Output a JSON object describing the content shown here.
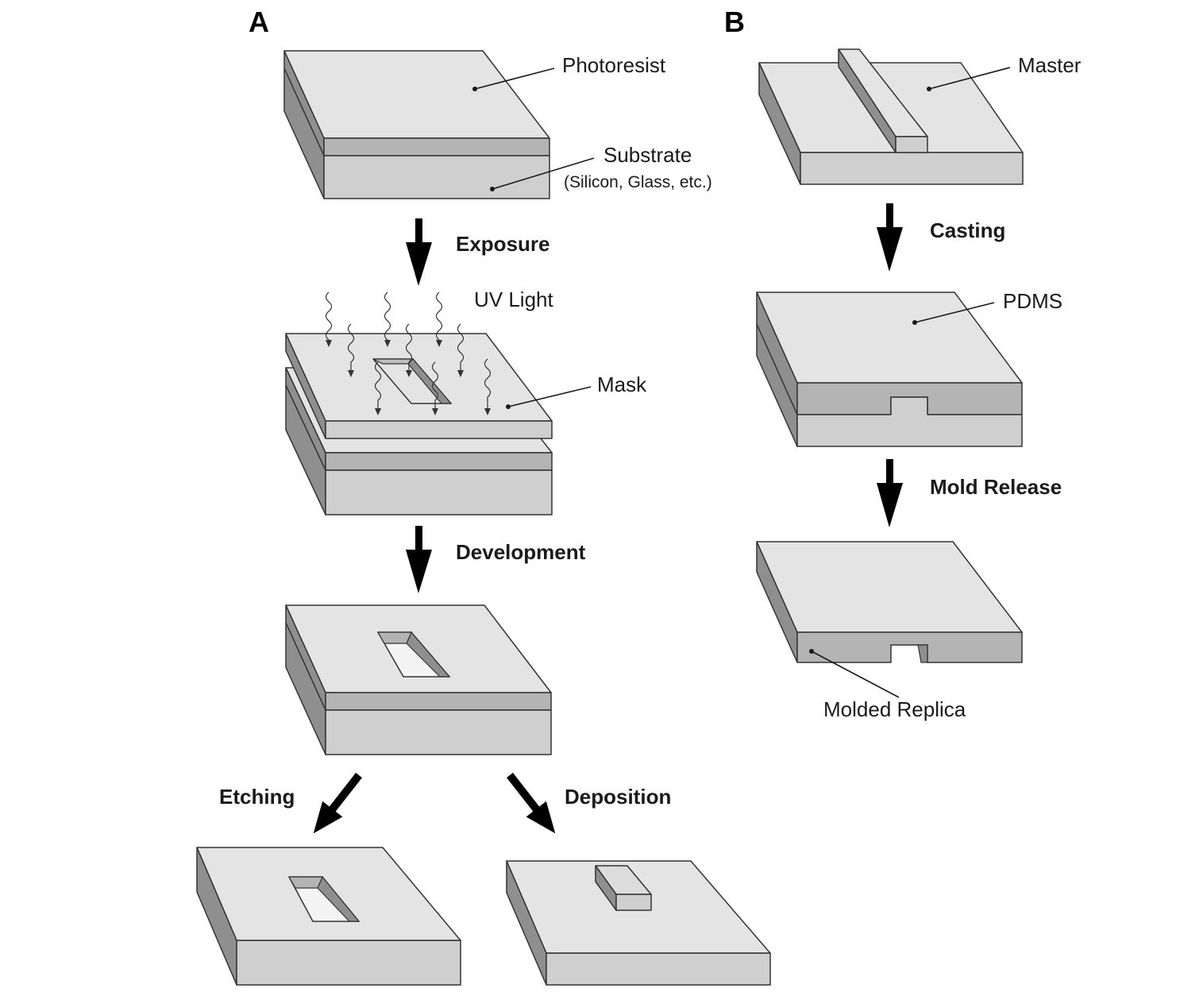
{
  "panels": {
    "a": "A",
    "b": "B"
  },
  "labels": {
    "photoresist": "Photoresist",
    "substrate": "Substrate",
    "substrate_note": "(Silicon, Glass, etc.)",
    "uv_light": "UV Light",
    "mask": "Mask",
    "master": "Master",
    "pdms": "PDMS",
    "molded_replica": "Molded Replica"
  },
  "steps": {
    "exposure": "Exposure",
    "development": "Development",
    "etching": "Etching",
    "deposition": "Deposition",
    "casting": "Casting",
    "mold_release": "Mold Release"
  },
  "colors": {
    "top_face": "#e4e4e4",
    "side_dark": "#8f8f8f",
    "front_light": "#cfcfcf",
    "front_mid": "#b4b4b4",
    "outline": "#333333",
    "arrow": "#000000"
  }
}
